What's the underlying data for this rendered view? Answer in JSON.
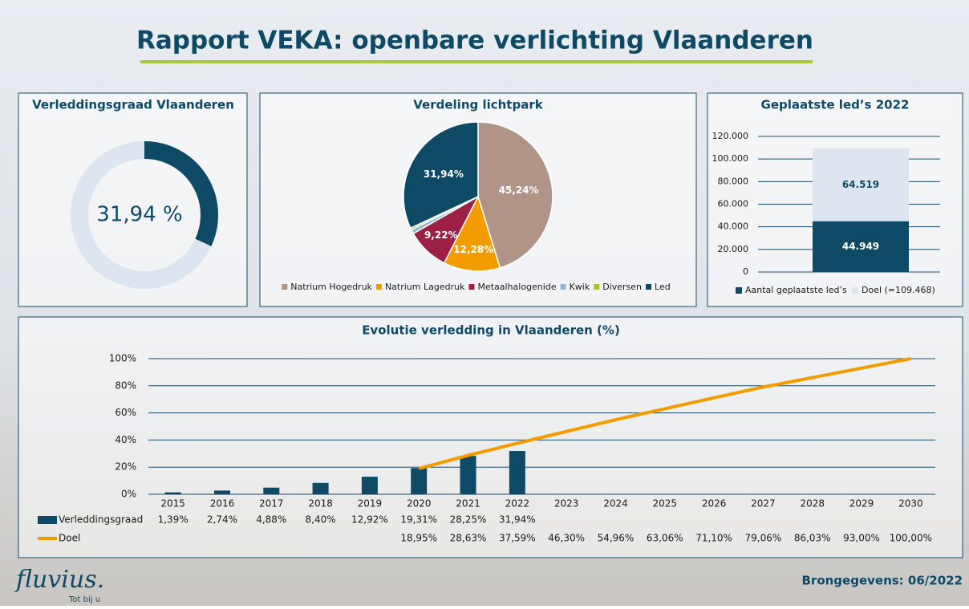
{
  "title": "Rapport VEKA: openbare verlichting Vlaanderen",
  "brand": "fluvius.",
  "tagline": "Tot bij u",
  "source": "Brongegevens: 06/2022",
  "chart_data": [
    {
      "type": "donut",
      "title": "Verleddingsgraad Vlaanderen",
      "values": [
        31.94
      ],
      "value_labels": [
        "31,94 %"
      ],
      "max": 100,
      "color": "#0e4a66",
      "track_color": "#dde6f0"
    },
    {
      "type": "pie",
      "title": "Verdeling lichtpark",
      "categories": [
        "Natrium Hogedruk",
        "Natrium Lagedruk",
        "Metaalhalogenide",
        "Kwik",
        "Diversen",
        "Led"
      ],
      "values": [
        45.24,
        12.28,
        9.22,
        0.9,
        0.42,
        31.94
      ],
      "value_labels": [
        "45,24%",
        "12,28%",
        "9,22%",
        null,
        null,
        "31,94%"
      ],
      "colors": [
        "#b09488",
        "#f29c00",
        "#9e1f45",
        "#8fb8d8",
        "#a8c03a",
        "#0e4a66"
      ]
    },
    {
      "type": "stacked-bar",
      "title": "Geplaatste led’s 2022",
      "categories": [
        null
      ],
      "series": [
        {
          "name": "Aantal geplaatste led’s",
          "color": "#0e4a66",
          "values": [
            44949
          ],
          "value_labels": [
            "44.949"
          ]
        },
        {
          "name": "Doel (=109.468)",
          "color": "#dde6f0",
          "values": [
            64519
          ],
          "value_labels": [
            "64.519"
          ]
        }
      ],
      "ylim": [
        0,
        120000
      ],
      "yticks": [
        0,
        {
          "value": 20000,
          "label": "20.000"
        },
        {
          "value": 40000,
          "label": "40.000"
        },
        {
          "value": 60000,
          "label": "60.000"
        },
        {
          "value": 80000,
          "label": "80.000"
        },
        {
          "value": 100000,
          "label": "100.000"
        },
        {
          "value": 120000,
          "label": "120.000"
        }
      ],
      "grid": true
    },
    {
      "type": "combo",
      "title": "Evolutie verledding in Vlaanderen (%)",
      "categories": [
        "2015",
        "2016",
        "2017",
        "2018",
        "2019",
        "2020",
        "2021",
        "2022",
        "2023",
        "2024",
        "2025",
        "2026",
        "2027",
        "2028",
        "2029",
        "2030"
      ],
      "series": [
        {
          "name": "Verleddingsgraad",
          "kind": "bar",
          "color": "#0e4a66",
          "values": [
            1.39,
            2.74,
            4.88,
            8.4,
            12.92,
            19.31,
            28.25,
            31.94,
            null,
            null,
            null,
            null,
            null,
            null,
            null,
            null
          ],
          "value_labels": [
            "1,39%",
            "2,74%",
            "4,88%",
            "8,40%",
            "12,92%",
            "19,31%",
            "28,25%",
            "31,94%",
            null,
            null,
            null,
            null,
            null,
            null,
            null,
            null
          ]
        },
        {
          "name": "Doel",
          "kind": "line",
          "color": "#f29c00",
          "values": [
            null,
            null,
            null,
            null,
            null,
            18.95,
            28.63,
            37.59,
            46.3,
            54.96,
            63.06,
            71.1,
            79.06,
            86.03,
            93.0,
            100.0
          ],
          "value_labels": [
            null,
            null,
            null,
            null,
            null,
            "18,95%",
            "28,63%",
            "37,59%",
            "46,30%",
            "54,96%",
            "63,06%",
            "71,10%",
            "79,06%",
            "86,03%",
            "93,00%",
            "100,00%"
          ]
        }
      ],
      "ylim": [
        0,
        100
      ],
      "yticks": [
        {
          "value": 0,
          "label": "0%"
        },
        {
          "value": 20,
          "label": "20%"
        },
        {
          "value": 40,
          "label": "40%"
        },
        {
          "value": 60,
          "label": "60%"
        },
        {
          "value": 80,
          "label": "80%"
        },
        {
          "value": 100,
          "label": "100%"
        }
      ],
      "grid": true
    }
  ]
}
